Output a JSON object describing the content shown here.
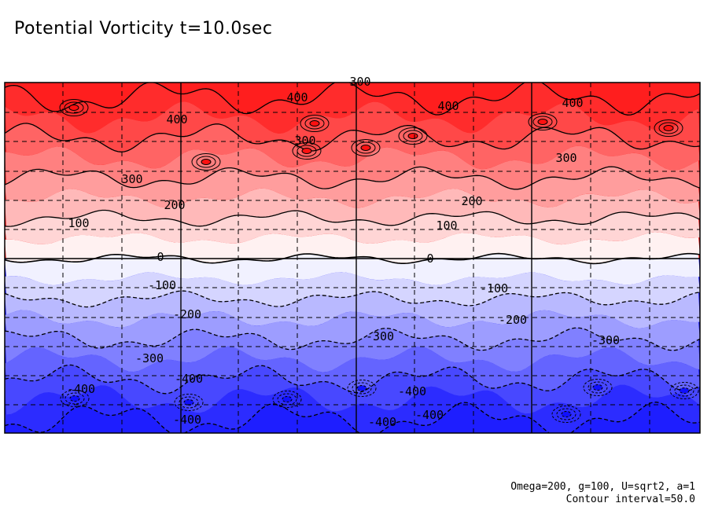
{
  "chart_data": {
    "type": "heatmap",
    "title": "Potential Vorticity t=10.0sec",
    "contour_interval": 50.0,
    "levels": [
      -400,
      -350,
      -300,
      -250,
      -200,
      -150,
      -100,
      -50,
      0,
      50,
      100,
      150,
      200,
      250,
      300,
      350,
      400
    ],
    "colors": {
      "positive_strong": "#ff2020",
      "neutral": "#ffffff",
      "negative_strong": "#2020ff"
    },
    "contour_labels": [
      {
        "text": "300"
      },
      {
        "text": "400"
      },
      {
        "text": "400"
      },
      {
        "text": "400"
      },
      {
        "text": "400"
      },
      {
        "text": "300"
      },
      {
        "text": "300"
      },
      {
        "text": "300"
      },
      {
        "text": "200"
      },
      {
        "text": "200"
      },
      {
        "text": "100"
      },
      {
        "text": "100"
      },
      {
        "text": "0"
      },
      {
        "text": "0"
      },
      {
        "text": "-100"
      },
      {
        "text": "-100"
      },
      {
        "text": "-200"
      },
      {
        "text": "-200"
      },
      {
        "text": "-300"
      },
      {
        "text": "-300"
      },
      {
        "text": "-300"
      },
      {
        "text": "-400"
      },
      {
        "text": "-400"
      },
      {
        "text": "-400"
      },
      {
        "text": "-400"
      },
      {
        "text": "-400"
      },
      {
        "text": "-400"
      }
    ],
    "grid": true,
    "footer_lines": [
      "Omega=200, g=100, U=sqrt2, a=1",
      "Contour interval=50.0"
    ]
  }
}
